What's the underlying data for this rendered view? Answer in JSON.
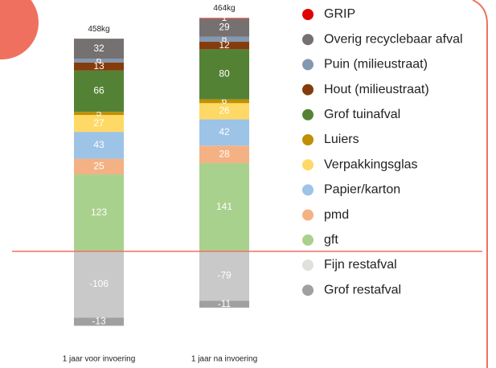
{
  "chart_data": {
    "type": "stacked_bar",
    "categories": [
      "1 jaar voor invoering",
      "1 jaar na invoering"
    ],
    "total_labels": [
      "458kg",
      "464kg"
    ],
    "series": [
      {
        "name": "GRIP",
        "color": "#e00000",
        "values": [
          null,
          1
        ]
      },
      {
        "name": "Overig recyclebaar afval",
        "color": "#767171",
        "values": [
          32,
          29
        ]
      },
      {
        "name": "Puin (milieustraat)",
        "color": "#8497b0",
        "values": [
          6,
          8
        ]
      },
      {
        "name": "Hout (milieustraat)",
        "color": "#843c0c",
        "values": [
          13,
          12
        ]
      },
      {
        "name": "Grof tuinafval",
        "color": "#548235",
        "values": [
          66,
          80
        ]
      },
      {
        "name": "Luiers",
        "color": "#bf9000",
        "values": [
          5,
          6
        ]
      },
      {
        "name": "Verpakkingsglas",
        "color": "#ffd966",
        "values": [
          27,
          26
        ]
      },
      {
        "name": "Papier/karton",
        "color": "#9dc3e6",
        "values": [
          43,
          42
        ]
      },
      {
        "name": "pmd",
        "color": "#f4b183",
        "values": [
          25,
          28
        ]
      },
      {
        "name": "gft",
        "color": "#a9d18e",
        "values": [
          123,
          141
        ]
      },
      {
        "name": "Fijn restafval",
        "color": "#c9c9c9",
        "values": [
          -106,
          -79
        ]
      },
      {
        "name": "Grof restafval",
        "color": "#a0a0a0",
        "values": [
          -13,
          -11
        ]
      }
    ],
    "ylim": [
      -130,
      380
    ]
  }
}
